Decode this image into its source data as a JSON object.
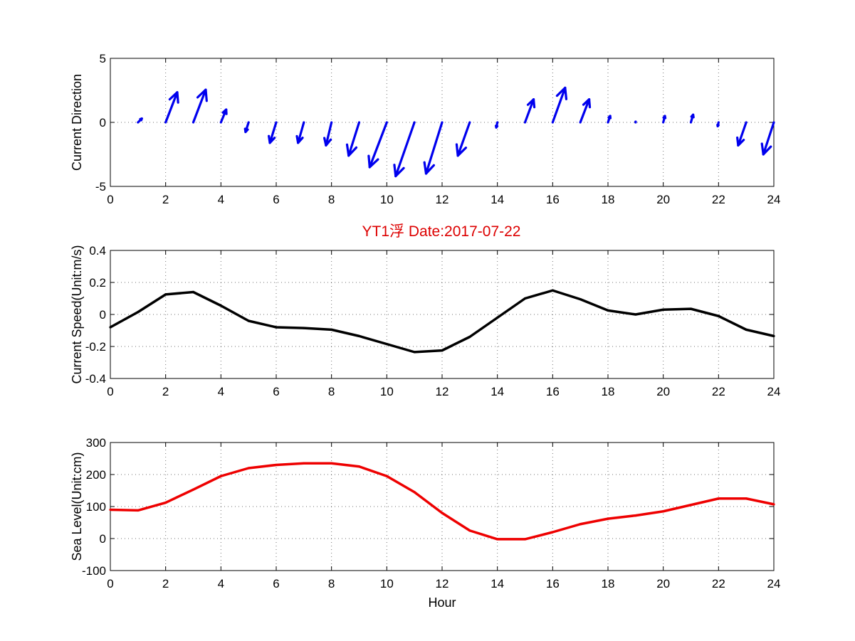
{
  "figure": {
    "title": "YT1浮    Date:2017-07-22"
  },
  "colors": {
    "direction": "#0000ee",
    "speed": "#000000",
    "sea_level": "#ee0000",
    "title": "#dd0000"
  },
  "chart_data": [
    {
      "type": "quiver",
      "ylabel": "Current Direction",
      "xlabel": "",
      "xlim": [
        0,
        24
      ],
      "ylim": [
        -5,
        5
      ],
      "xticks": [
        0,
        2,
        4,
        6,
        8,
        10,
        12,
        14,
        16,
        18,
        20,
        22,
        24
      ],
      "yticks": [
        -5,
        0,
        5
      ],
      "grid": true,
      "x": [
        1,
        2,
        3,
        4,
        5,
        6,
        7,
        8,
        9,
        10,
        11,
        12,
        13,
        14,
        15,
        16,
        17,
        18,
        19,
        20,
        21,
        22,
        23,
        24
      ],
      "u": [
        0.14,
        0.42,
        0.45,
        0.19,
        -0.11,
        -0.23,
        -0.21,
        -0.2,
        -0.38,
        -0.62,
        -0.68,
        -0.58,
        -0.43,
        -0.04,
        0.31,
        0.45,
        0.32,
        0.08,
        0.0,
        0.06,
        0.08,
        -0.03,
        -0.29,
        -0.38
      ],
      "v": [
        0.3,
        2.35,
        2.55,
        1.0,
        -0.75,
        -1.6,
        -1.6,
        -1.8,
        -2.6,
        -3.5,
        -4.2,
        -4.0,
        -2.6,
        -0.4,
        1.8,
        2.7,
        1.8,
        0.5,
        0.05,
        0.5,
        0.6,
        -0.3,
        -1.8,
        -2.5
      ]
    },
    {
      "type": "line",
      "ylabel": "Current Speed(Unit:m/s)",
      "xlabel": "",
      "xlim": [
        0,
        24
      ],
      "ylim": [
        -0.4,
        0.4
      ],
      "xticks": [
        0,
        2,
        4,
        6,
        8,
        10,
        12,
        14,
        16,
        18,
        20,
        22,
        24
      ],
      "yticks": [
        -0.4,
        -0.2,
        0,
        0.2,
        0.4
      ],
      "grid": true,
      "x": [
        0,
        1,
        2,
        3,
        4,
        5,
        6,
        7,
        8,
        9,
        10,
        11,
        12,
        13,
        14,
        15,
        16,
        17,
        18,
        19,
        20,
        21,
        22,
        23,
        24
      ],
      "series": [
        {
          "values": [
            -0.08,
            0.015,
            0.125,
            0.14,
            0.055,
            -0.04,
            -0.08,
            -0.085,
            -0.095,
            -0.135,
            -0.185,
            -0.235,
            -0.225,
            -0.14,
            -0.02,
            0.1,
            0.15,
            0.095,
            0.025,
            0.0,
            0.03,
            0.035,
            -0.01,
            -0.095,
            -0.135
          ]
        }
      ]
    },
    {
      "type": "line",
      "ylabel": "Sea Level(Unit:cm)",
      "xlabel": "Hour",
      "xlim": [
        0,
        24
      ],
      "ylim": [
        -100,
        300
      ],
      "xticks": [
        0,
        2,
        4,
        6,
        8,
        10,
        12,
        14,
        16,
        18,
        20,
        22,
        24
      ],
      "yticks": [
        -100,
        0,
        100,
        200,
        300
      ],
      "grid": true,
      "x": [
        0,
        1,
        2,
        3,
        4,
        5,
        6,
        7,
        8,
        9,
        10,
        11,
        12,
        13,
        14,
        15,
        16,
        17,
        18,
        19,
        20,
        21,
        22,
        23,
        24
      ],
      "series": [
        {
          "values": [
            90,
            88,
            112,
            153,
            195,
            220,
            230,
            235,
            235,
            225,
            195,
            145,
            80,
            25,
            -2,
            -2,
            20,
            45,
            62,
            72,
            85,
            105,
            125,
            125,
            107
          ]
        }
      ]
    }
  ]
}
